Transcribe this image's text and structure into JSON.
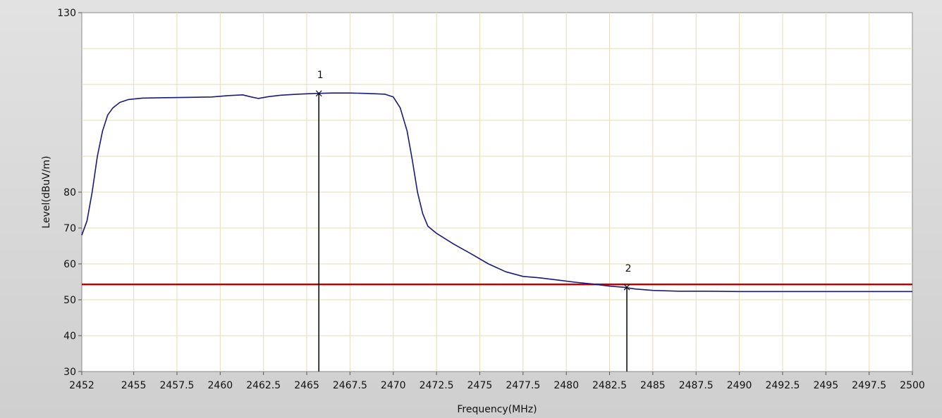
{
  "chart_data": {
    "type": "line",
    "title": "",
    "xlabel": "Frequency(MHz)",
    "ylabel": "Level(dBuV/m)",
    "xlim": [
      2452,
      2500
    ],
    "ylim": [
      30,
      130
    ],
    "x_ticks": [
      "2452",
      "2455",
      "2457.5",
      "2460",
      "2462.5",
      "2465",
      "2467.5",
      "2470",
      "2472.5",
      "2475",
      "2477.5",
      "2480",
      "2482.5",
      "2485",
      "2487.5",
      "2490",
      "2492.5",
      "2495",
      "2497.5",
      "2500"
    ],
    "y_ticks": [
      "30",
      "40",
      "50",
      "60",
      "70",
      "80",
      "130"
    ],
    "grid": true,
    "colors": {
      "trace": "#1a1a7a",
      "limit": "#c00000",
      "grid": "#e6dcb8",
      "marker": "#000000",
      "plot_bg": "#ffffff"
    },
    "series": [
      {
        "x": [
          2452.0,
          2452.3,
          2452.6,
          2452.9,
          2453.2,
          2453.5,
          2453.8,
          2454.2,
          2454.7,
          2455.5,
          2456.5,
          2458.0,
          2459.5,
          2460.5,
          2461.3,
          2461.8,
          2462.2,
          2462.8,
          2463.5,
          2464.5,
          2465.5,
          2466.5,
          2467.5,
          2468.5,
          2469.5,
          2470.0,
          2470.4,
          2470.8,
          2471.1,
          2471.4,
          2471.7,
          2472.0,
          2472.5,
          2473.5,
          2474.5,
          2475.5,
          2476.5,
          2477.5,
          2478.5,
          2479.5,
          2480.5,
          2481.5,
          2482.5,
          2483.3,
          2484.0,
          2485.0,
          2486.5,
          2488.0,
          2490.0,
          2492.0,
          2494.0,
          2496.0,
          2498.0,
          2500.0
        ],
        "y": [
          68.0,
          72.0,
          80.0,
          90.0,
          97.0,
          101.5,
          103.5,
          105.0,
          105.8,
          106.2,
          106.3,
          106.4,
          106.5,
          106.9,
          107.1,
          106.5,
          106.1,
          106.6,
          107.0,
          107.3,
          107.5,
          107.6,
          107.6,
          107.5,
          107.3,
          106.5,
          103.5,
          97.0,
          89.0,
          80.0,
          74.0,
          70.5,
          68.5,
          65.5,
          62.8,
          60.0,
          57.8,
          56.5,
          56.1,
          55.5,
          54.9,
          54.4,
          53.8,
          53.5,
          53.0,
          52.6,
          52.4,
          52.4,
          52.3,
          52.3,
          52.3,
          52.3,
          52.3,
          52.3
        ]
      }
    ],
    "limit_line": {
      "y": 54.3
    },
    "markers": [
      {
        "label": "1",
        "x": 2465.7,
        "y": 107.5
      },
      {
        "label": "2",
        "x": 2483.5,
        "y": 53.5
      }
    ]
  }
}
